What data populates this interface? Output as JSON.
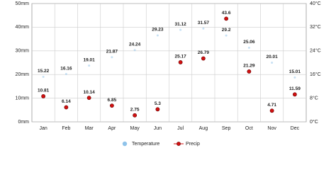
{
  "chart_data": {
    "type": "line",
    "categories": [
      "Jan",
      "Feb",
      "Mar",
      "Apr",
      "May",
      "Jun",
      "Jul",
      "Aug",
      "Sep",
      "Oct",
      "Nov",
      "Dec"
    ],
    "series": [
      {
        "name": "Temperature",
        "color": "#8fc3ea",
        "axis": "y2",
        "values": [
          15.22,
          16.16,
          19.01,
          21.87,
          24.24,
          29.23,
          31.12,
          31.57,
          29.2,
          25.06,
          20.01,
          15.01
        ]
      },
      {
        "name": "Precip",
        "color": "#d21010",
        "values": [
          10.81,
          6.14,
          10.14,
          6.85,
          2.75,
          5.3,
          25.17,
          26.79,
          43.6,
          21.29,
          4.71,
          11.59
        ]
      }
    ],
    "ylim": [
      0,
      50
    ],
    "yticks": [
      {
        "value": 0,
        "label": "0mm"
      },
      {
        "value": 10,
        "label": "10mm"
      },
      {
        "value": 20,
        "label": "20mm"
      },
      {
        "value": 30,
        "label": "30mm"
      },
      {
        "value": 40,
        "label": "40mm"
      },
      {
        "value": 50,
        "label": "50mm"
      }
    ],
    "y2lim": [
      0,
      40
    ],
    "y2ticks": [
      {
        "value": 0,
        "label": "0°C"
      },
      {
        "value": 8,
        "label": "8°C"
      },
      {
        "value": 16,
        "label": "16°C"
      },
      {
        "value": 24,
        "label": "24°C"
      },
      {
        "value": 32,
        "label": "32°C"
      },
      {
        "value": 40,
        "label": "40°C"
      }
    ],
    "grid": true
  }
}
